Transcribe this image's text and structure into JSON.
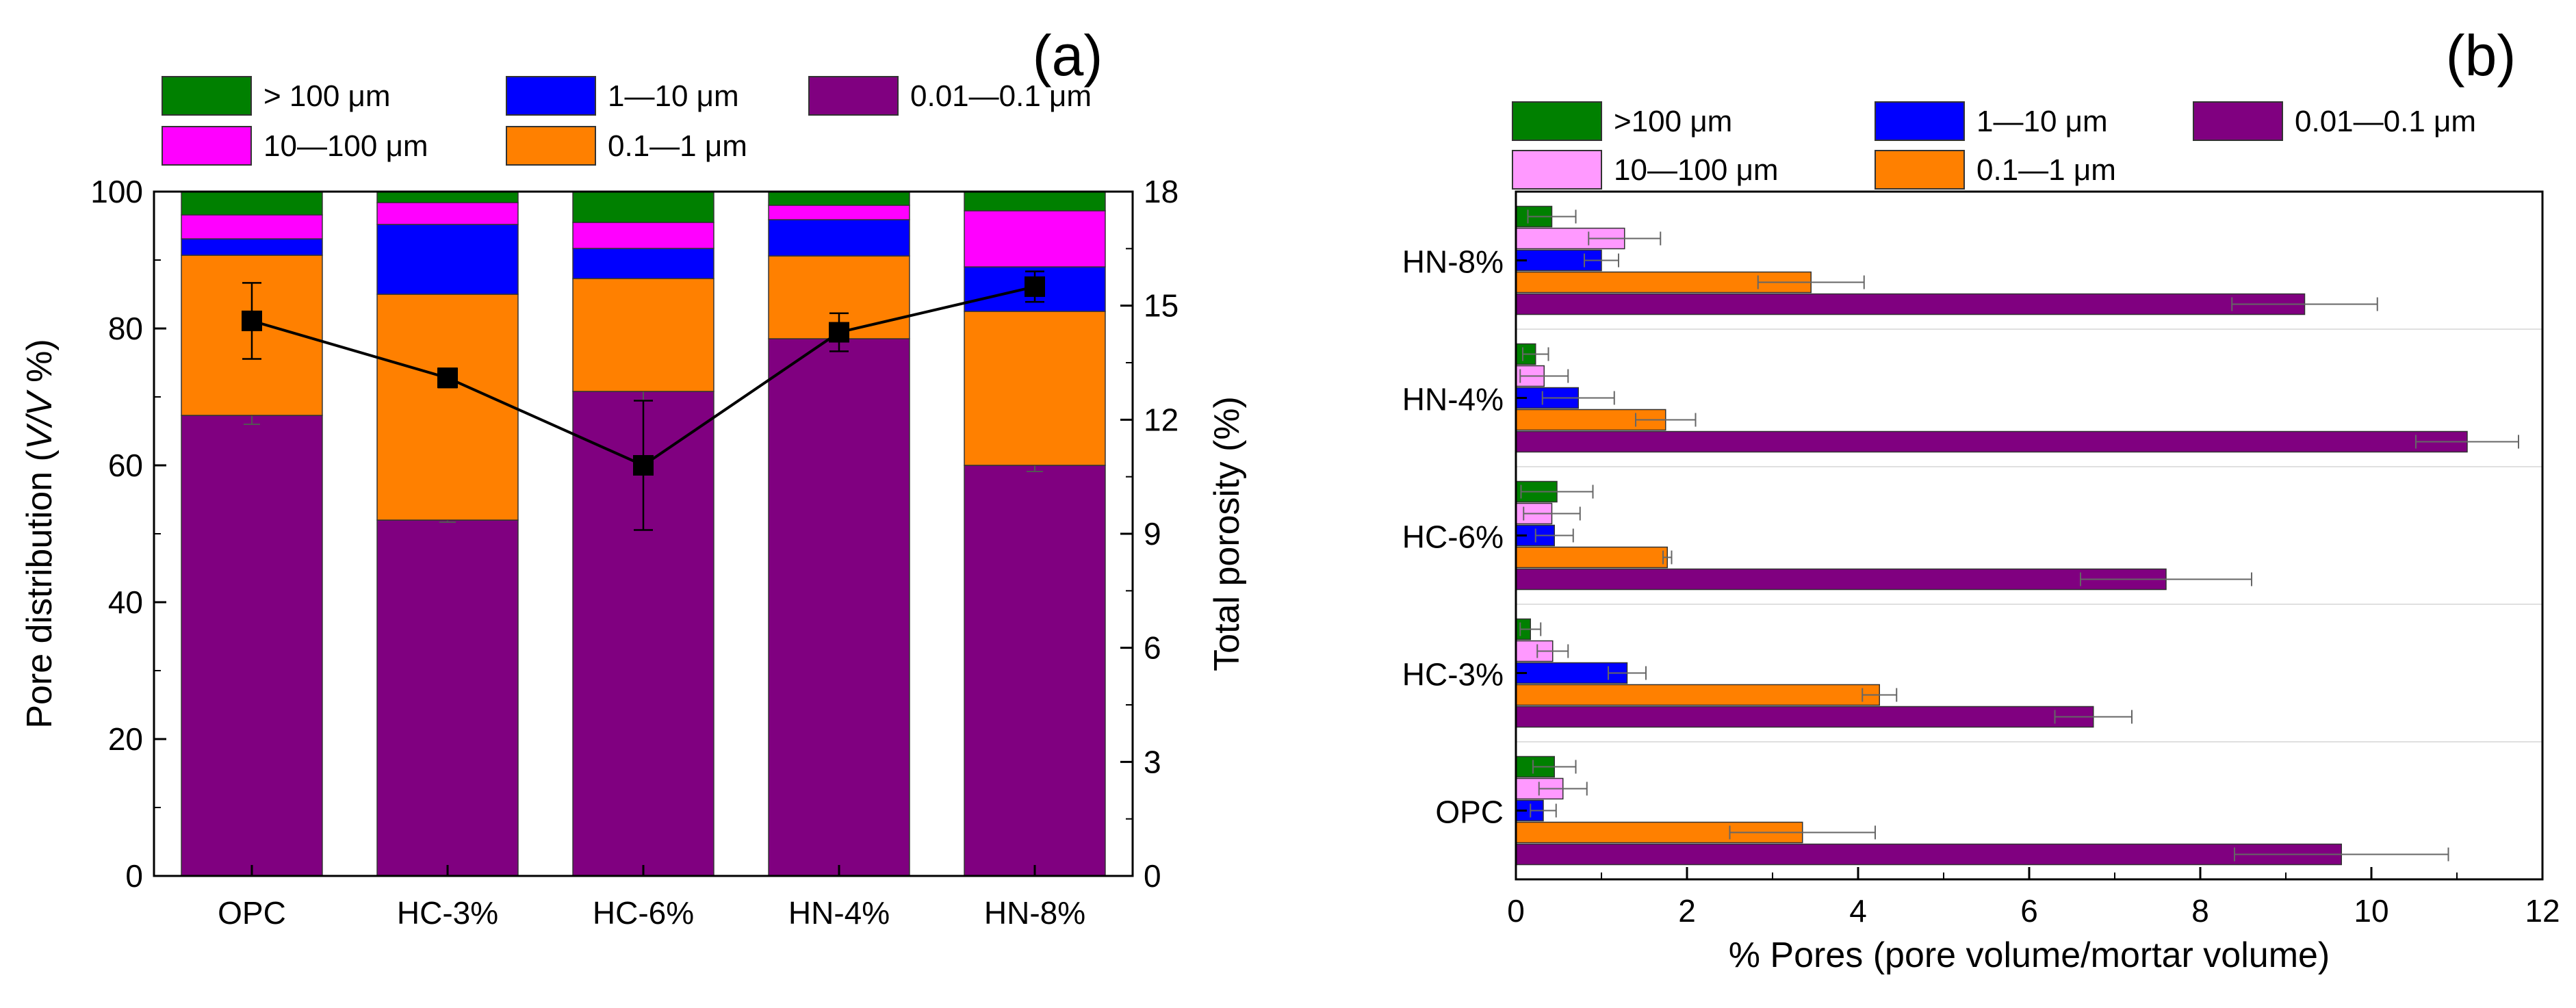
{
  "figure": {
    "panel_a_label": "(a)",
    "panel_b_label": "(b)"
  },
  "chart_data": [
    {
      "id": "a",
      "type": "bar",
      "stacked": true,
      "title": "",
      "xlabel": "",
      "ylabel_parts": [
        "Pore distribution (",
        "V/V",
        " %)"
      ],
      "y2label": "Total porosity (%)",
      "categories": [
        "OPC",
        "HC-3%",
        "HC-6%",
        "HN-4%",
        "HN-8%"
      ],
      "ylim": [
        0,
        100
      ],
      "yticks": [
        0,
        20,
        40,
        60,
        80,
        100
      ],
      "y2lim": [
        0,
        18
      ],
      "y2ticks": [
        0,
        3,
        6,
        9,
        12,
        15,
        18
      ],
      "series": [
        {
          "name": "0.01—0.1 μm",
          "color": "#800080",
          "values": [
            67.3,
            52.0,
            70.8,
            78.5,
            60.0
          ],
          "err": [
            1.3,
            0.3,
            1.3,
            0.4,
            0.9
          ]
        },
        {
          "name": "0.1—1 μm",
          "color": "#ff8000",
          "values": [
            23.4,
            33.0,
            16.5,
            12.1,
            22.5
          ],
          "err": [
            0,
            0,
            0,
            0,
            0
          ]
        },
        {
          "name": "1—10 μm",
          "color": "#0000ff",
          "values": [
            2.4,
            10.2,
            4.4,
            5.3,
            6.5
          ],
          "err": [
            0,
            0,
            0,
            0,
            0
          ]
        },
        {
          "name": "10—100 μm",
          "color": "#ff00ff",
          "values": [
            3.5,
            3.2,
            3.8,
            2.1,
            8.2
          ],
          "err": [
            0,
            0,
            0,
            0,
            0
          ]
        },
        {
          "name": "> 100 μm",
          "color": "#008000",
          "values": [
            3.4,
            1.6,
            4.5,
            2.0,
            2.8
          ],
          "err": [
            0,
            0,
            0,
            0,
            0
          ]
        }
      ],
      "legend_layout": [
        [
          "> 100 μm",
          "1—10 μm",
          "0.01—0.1 μm"
        ],
        [
          "10—100 μm",
          "0.1—1 μm"
        ]
      ],
      "line_series": {
        "name": "Total porosity",
        "axis": "right",
        "values": [
          14.6,
          13.1,
          10.8,
          14.3,
          15.5
        ],
        "err": [
          1.0,
          0.25,
          1.7,
          0.5,
          0.4
        ],
        "color": "#000000"
      }
    },
    {
      "id": "b",
      "type": "bar",
      "orientation": "horizontal",
      "title": "",
      "xlabel": "% Pores (pore volume/mortar volume)",
      "ylabel": "",
      "categories": [
        "OPC",
        "HC-3%",
        "HC-6%",
        "HN-4%",
        "HN-8%"
      ],
      "xlim": [
        0,
        12
      ],
      "xticks": [
        0,
        2,
        4,
        6,
        8,
        10,
        12
      ],
      "series": [
        {
          "name": ">100 μm",
          "color": "#008000",
          "values": [
            0.45,
            0.17,
            0.48,
            0.23,
            0.42
          ],
          "err": [
            0.25,
            0.12,
            0.42,
            0.15,
            0.28
          ]
        },
        {
          "name": "10—100 μm",
          "color": "#ff99ff",
          "values": [
            0.55,
            0.43,
            0.42,
            0.33,
            1.27
          ],
          "err": [
            0.28,
            0.18,
            0.33,
            0.28,
            0.42
          ]
        },
        {
          "name": "1—10 μm",
          "color": "#0000ff",
          "values": [
            0.32,
            1.3,
            0.45,
            0.73,
            1.0
          ],
          "err": [
            0.15,
            0.22,
            0.22,
            0.42,
            0.2
          ]
        },
        {
          "name": "0.1—1 μm",
          "color": "#ff8000",
          "values": [
            3.35,
            4.25,
            1.77,
            1.75,
            3.45
          ],
          "err": [
            0.85,
            0.2,
            0.05,
            0.35,
            0.62
          ]
        },
        {
          "name": "0.01—0.1 μm",
          "color": "#800080",
          "values": [
            9.65,
            6.75,
            7.6,
            11.12,
            9.22
          ],
          "err": [
            1.25,
            0.45,
            1.0,
            0.6,
            0.85
          ]
        }
      ],
      "legend_layout": [
        [
          ">100 μm",
          "1—10 μm",
          "0.01—0.1 μm"
        ],
        [
          "10—100 μm",
          "0.1—1 μm"
        ]
      ]
    }
  ]
}
